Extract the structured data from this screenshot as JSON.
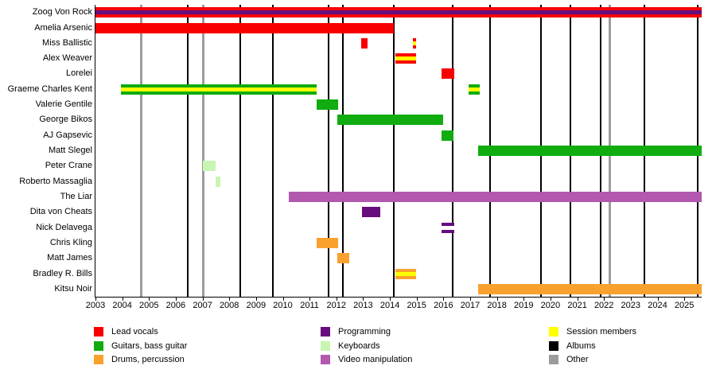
{
  "chart_data": {
    "type": "bar",
    "subtype": "band-members-gantt-timeline",
    "title": "",
    "x_axis": {
      "min": 2003,
      "max": 2025.65,
      "tick_years": [
        2003,
        2004,
        2005,
        2006,
        2007,
        2008,
        2009,
        2010,
        2011,
        2012,
        2013,
        2014,
        2015,
        2016,
        2017,
        2018,
        2019,
        2020,
        2021,
        2022,
        2023,
        2024,
        2025
      ]
    },
    "palette": {
      "lead_vocals": "#f90000",
      "guitars": "#10ac10",
      "drums": "#f9a12e",
      "programming": "#670d7e",
      "keyboards": "#c8f5b1",
      "video": "#b259af",
      "session": "#ffff00",
      "albums": "#000000",
      "other": "#9c9c9c",
      "white": "#ffffff"
    },
    "rows": [
      {
        "name": "Zoog Von Rock",
        "bars": [
          {
            "start": 2003.0,
            "end": 2025.65,
            "color": "lead_vocals",
            "stripe": "programming"
          }
        ]
      },
      {
        "name": "Amelia Arsenic",
        "bars": [
          {
            "start": 2003.0,
            "end": 2014.15,
            "color": "lead_vocals"
          }
        ]
      },
      {
        "name": "Miss Ballistic",
        "bars": [
          {
            "start": 2012.93,
            "end": 2013.17,
            "color": "lead_vocals"
          },
          {
            "start": 2014.86,
            "end": 2014.98,
            "color": "lead_vocals",
            "stripe": "session"
          }
        ]
      },
      {
        "name": "Alex Weaver",
        "bars": [
          {
            "start": 2014.2,
            "end": 2014.98,
            "color": "lead_vocals",
            "stripe": "session"
          }
        ]
      },
      {
        "name": "Lorelei",
        "bars": [
          {
            "start": 2015.93,
            "end": 2016.41,
            "color": "lead_vocals"
          }
        ]
      },
      {
        "name": "Graeme Charles Kent",
        "bars": [
          {
            "start": 2003.95,
            "end": 2011.26,
            "color": "guitars",
            "stripe": "session"
          },
          {
            "start": 2016.94,
            "end": 2017.36,
            "color": "guitars",
            "stripe": "session"
          }
        ]
      },
      {
        "name": "Valerie Gentile",
        "bars": [
          {
            "start": 2011.26,
            "end": 2012.06,
            "color": "guitars"
          }
        ]
      },
      {
        "name": "George Bikos",
        "bars": [
          {
            "start": 2012.04,
            "end": 2016.0,
            "color": "guitars"
          }
        ]
      },
      {
        "name": "AJ Gapsevic",
        "bars": [
          {
            "start": 2015.93,
            "end": 2016.37,
            "color": "guitars"
          }
        ]
      },
      {
        "name": "Matt Slegel",
        "bars": [
          {
            "start": 2017.3,
            "end": 2025.65,
            "color": "guitars"
          }
        ]
      },
      {
        "name": "Peter Crane",
        "bars": [
          {
            "start": 2007.0,
            "end": 2007.5,
            "color": "keyboards"
          }
        ]
      },
      {
        "name": "Roberto Massaglia",
        "bars": [
          {
            "start": 2007.5,
            "end": 2007.68,
            "color": "keyboards"
          }
        ]
      },
      {
        "name": "The Liar",
        "bars": [
          {
            "start": 2010.23,
            "end": 2025.65,
            "color": "video"
          }
        ]
      },
      {
        "name": "Dita von Cheats",
        "bars": [
          {
            "start": 2012.96,
            "end": 2013.64,
            "color": "programming"
          }
        ]
      },
      {
        "name": "Nick Delavega",
        "bars": [
          {
            "start": 2015.93,
            "end": 2016.41,
            "color": "programming",
            "stripe": "white"
          }
        ]
      },
      {
        "name": "Chris Kling",
        "bars": [
          {
            "start": 2011.26,
            "end": 2012.06,
            "color": "drums"
          }
        ]
      },
      {
        "name": "Matt James",
        "bars": [
          {
            "start": 2012.04,
            "end": 2012.49,
            "color": "drums"
          }
        ]
      },
      {
        "name": "Bradley R. Bills",
        "bars": [
          {
            "start": 2014.2,
            "end": 2014.98,
            "color": "drums",
            "stripe": "session"
          }
        ]
      },
      {
        "name": "Kitsu Noir",
        "bars": [
          {
            "start": 2017.3,
            "end": 2025.65,
            "color": "drums"
          }
        ]
      }
    ],
    "events": [
      {
        "x": 2004.72,
        "kind": "other"
      },
      {
        "x": 2006.45,
        "kind": "album"
      },
      {
        "x": 2007.04,
        "kind": "other"
      },
      {
        "x": 2008.41,
        "kind": "album"
      },
      {
        "x": 2009.63,
        "kind": "album"
      },
      {
        "x": 2011.71,
        "kind": "album"
      },
      {
        "x": 2012.24,
        "kind": "album"
      },
      {
        "x": 2014.14,
        "kind": "album"
      },
      {
        "x": 2016.34,
        "kind": "album"
      },
      {
        "x": 2017.74,
        "kind": "album"
      },
      {
        "x": 2019.64,
        "kind": "album"
      },
      {
        "x": 2020.74,
        "kind": "album"
      },
      {
        "x": 2021.87,
        "kind": "album"
      },
      {
        "x": 2022.23,
        "kind": "other"
      },
      {
        "x": 2023.5,
        "kind": "album"
      },
      {
        "x": 2025.5,
        "kind": "album"
      }
    ],
    "legend": {
      "columns": [
        [
          {
            "label": "Lead vocals",
            "color": "lead_vocals"
          },
          {
            "label": "Guitars, bass guitar",
            "color": "guitars"
          },
          {
            "label": "Drums, percussion",
            "color": "drums"
          }
        ],
        [
          {
            "label": "Programming",
            "color": "programming"
          },
          {
            "label": "Keyboards",
            "color": "keyboards"
          },
          {
            "label": "Video manipulation",
            "color": "video"
          }
        ],
        [
          {
            "label": "Session members",
            "color": "session"
          },
          {
            "label": "Albums",
            "color": "albums"
          },
          {
            "label": "Other",
            "color": "other"
          }
        ]
      ]
    }
  }
}
